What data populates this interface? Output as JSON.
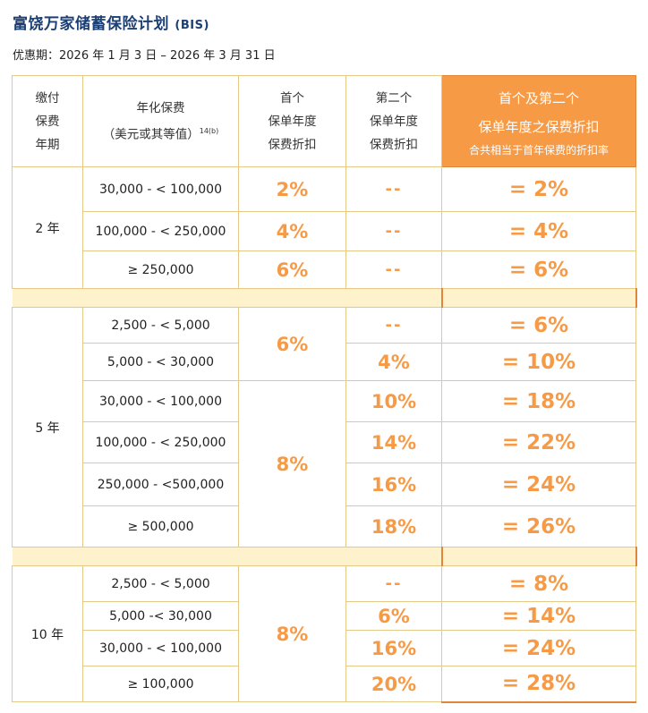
{
  "title": {
    "zh": "富饶万家储蓄保险计划",
    "en": "(BIS)"
  },
  "period": "优惠期：2026 年 1 月 3 日 – 2026 年 3 月 31 日",
  "headers": {
    "term": [
      "缴付",
      "保费",
      "年期"
    ],
    "premium": [
      "年化保费",
      "（美元或其等值）"
    ],
    "premium_sup": "14(b)",
    "first": [
      "首个",
      "保单年度",
      "保费折扣"
    ],
    "second": [
      "第二个",
      "保单年度",
      "保费折扣"
    ],
    "combined": [
      "首个及第二个",
      "保单年度之保费折扣"
    ],
    "combined_sub": "合共相当于首年保费的折扣率"
  },
  "groups": [
    {
      "term": "2 年",
      "rows": [
        {
          "range": "30,000 - < 100,000",
          "first": "2%",
          "second": "--",
          "total": "= 2%"
        },
        {
          "range": "100,000 - < 250,000",
          "first": "4%",
          "second": "--",
          "total": "= 4%"
        },
        {
          "range": "≥ 250,000",
          "first": "6%",
          "second": "--",
          "total": "= 6%"
        }
      ]
    },
    {
      "term": "5 年",
      "first_a": "6%",
      "first_b": "8%",
      "rows": [
        {
          "range": "2,500 - < 5,000",
          "second": "--",
          "total": "= 6%"
        },
        {
          "range": "5,000 - < 30,000",
          "second": "4%",
          "total": "= 10%"
        },
        {
          "range": "30,000 - < 100,000",
          "second": "10%",
          "total": "= 18%"
        },
        {
          "range": "100,000 - < 250,000",
          "second": "14%",
          "total": "= 22%"
        },
        {
          "range": "250,000 - <500,000",
          "second": "16%",
          "total": "= 24%"
        },
        {
          "range": "≥ 500,000",
          "second": "18%",
          "total": "= 26%"
        }
      ]
    },
    {
      "term": "10 年",
      "first": "8%",
      "rows": [
        {
          "range": "2,500 - < 5,000",
          "second": "--",
          "total": "= 8%"
        },
        {
          "range": "5,000 -< 30,000",
          "second": "6%",
          "total": "= 14%"
        },
        {
          "range": "30,000 - < 100,000",
          "second": "16%",
          "total": "= 24%"
        },
        {
          "range": "≥ 100,000",
          "second": "20%",
          "total": "= 28%"
        }
      ]
    }
  ]
}
